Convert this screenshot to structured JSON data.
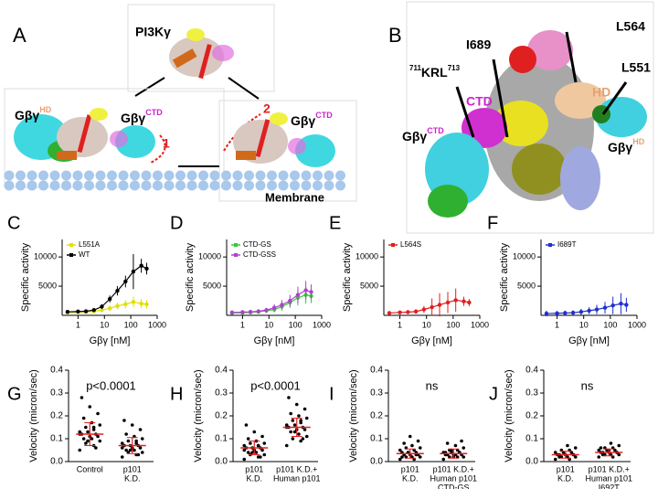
{
  "panel_a": {
    "label": "A",
    "enzyme": "PI3Kγ",
    "gbg_left": {
      "base": "Gβγ",
      "sup": "HD"
    },
    "gbg_middle": {
      "base": "Gβγ",
      "sup": "CTD"
    },
    "gbg_right": {
      "base": "Gβγ",
      "sup": "CTD"
    },
    "step1": "1",
    "step2": "2",
    "membrane": "Membrane"
  },
  "panel_b": {
    "label": "B",
    "residues": [
      "L564",
      "I689",
      "L551"
    ],
    "krl": {
      "pre": "711",
      "main": "KRL",
      "post": "713"
    },
    "ctd": "CTD",
    "hd": "HD",
    "gbg_left": {
      "base": "Gβγ",
      "sup": "CTD"
    },
    "gbg_right": {
      "base": "Gβγ",
      "sup": "HD"
    }
  },
  "chart_data": [
    {
      "type": "line",
      "label": "C",
      "ylabel": "Specific activity",
      "xlabel": "Gβγ [nM]",
      "log_x": true,
      "xlim": [
        0.25,
        1000
      ],
      "xticks": [
        1,
        10,
        100,
        1000
      ],
      "ylim": [
        0,
        13000
      ],
      "yticks": [
        5000,
        10000
      ],
      "x": [
        0.4,
        1,
        2,
        4,
        8,
        16,
        31,
        63,
        125,
        250,
        400
      ],
      "series": [
        {
          "name": "L551A",
          "color": "#e0e000",
          "values": [
            500,
            550,
            600,
            700,
            900,
            1200,
            1600,
            1900,
            2300,
            2000,
            1900
          ],
          "errors": [
            300,
            300,
            300,
            300,
            400,
            500,
            600,
            700,
            900,
            800,
            700
          ]
        },
        {
          "name": "WT",
          "color": "#000000",
          "values": [
            600,
            650,
            700,
            900,
            1500,
            2800,
            4200,
            5800,
            7500,
            8500,
            8000
          ],
          "errors": [
            200,
            200,
            200,
            300,
            400,
            600,
            800,
            1000,
            3000,
            1200,
            1000
          ]
        }
      ]
    },
    {
      "type": "line",
      "label": "D",
      "ylabel": "Specific activity",
      "xlabel": "Gβγ [nM]",
      "log_x": true,
      "xlim": [
        0.25,
        1000
      ],
      "xticks": [
        1,
        10,
        100,
        1000
      ],
      "ylim": [
        0,
        13000
      ],
      "yticks": [
        5000,
        10000
      ],
      "x": [
        0.4,
        1,
        2,
        4,
        8,
        16,
        31,
        63,
        125,
        250,
        400
      ],
      "series": [
        {
          "name": "CTD-GS",
          "color": "#33cc33",
          "values": [
            400,
            450,
            500,
            600,
            800,
            1000,
            1500,
            2200,
            3000,
            3500,
            3300
          ],
          "errors": [
            300,
            300,
            300,
            300,
            400,
            500,
            700,
            900,
            1300,
            1500,
            1200
          ]
        },
        {
          "name": "CTD-GSS",
          "color": "#b040d0",
          "values": [
            500,
            550,
            600,
            700,
            900,
            1300,
            1800,
            2500,
            3500,
            4300,
            4000
          ],
          "errors": [
            300,
            300,
            300,
            300,
            400,
            600,
            800,
            1000,
            1400,
            1600,
            1300
          ]
        }
      ]
    },
    {
      "type": "line",
      "label": "E",
      "ylabel": "Specific activity",
      "xlabel": "Gβγ [nM]",
      "log_x": true,
      "xlim": [
        0.25,
        1000
      ],
      "xticks": [
        1,
        10,
        100,
        1000
      ],
      "ylim": [
        0,
        13000
      ],
      "yticks": [
        5000,
        10000
      ],
      "x": [
        0.4,
        1,
        2,
        4,
        8,
        16,
        31,
        63,
        125,
        250,
        400
      ],
      "series": [
        {
          "name": "L564S",
          "color": "#e02020",
          "values": [
            400,
            500,
            550,
            650,
            1000,
            1400,
            1800,
            2200,
            2600,
            2400,
            2200
          ],
          "errors": [
            300,
            300,
            300,
            400,
            600,
            1500,
            2000,
            1800,
            2000,
            800,
            600
          ]
        }
      ]
    },
    {
      "type": "line",
      "label": "F",
      "ylabel": "Specific activity",
      "xlabel": "Gβγ [nM]",
      "log_x": true,
      "xlim": [
        0.25,
        1000
      ],
      "xticks": [
        1,
        10,
        100,
        1000
      ],
      "ylim": [
        0,
        13000
      ],
      "yticks": [
        5000,
        10000
      ],
      "x": [
        0.4,
        1,
        2,
        4,
        8,
        16,
        31,
        63,
        125,
        250,
        400
      ],
      "series": [
        {
          "name": "I689T",
          "color": "#2030d0",
          "values": [
            300,
            350,
            400,
            450,
            600,
            800,
            1000,
            1300,
            1700,
            2000,
            1800
          ],
          "errors": [
            500,
            400,
            400,
            400,
            500,
            600,
            800,
            1000,
            1500,
            1800,
            1200
          ]
        }
      ]
    },
    {
      "type": "dot",
      "label": "G",
      "ylabel": "Velocity (micron/sec)",
      "annotation": "p<0.0001",
      "ylim": [
        0,
        0.4
      ],
      "yticks": [
        {
          "value": 0,
          "label": "0.0"
        },
        0.1,
        0.2,
        0.3,
        0.4
      ],
      "categories": [
        [
          "Control"
        ],
        [
          "p101",
          "K.D."
        ]
      ],
      "groups": [
        {
          "values": [
            0.05,
            0.07,
            0.08,
            0.09,
            0.1,
            0.1,
            0.11,
            0.11,
            0.12,
            0.12,
            0.13,
            0.13,
            0.14,
            0.15,
            0.16,
            0.17,
            0.19,
            0.21,
            0.24,
            0.28,
            0.06,
            0.09,
            0.12,
            0.15
          ],
          "mean": 0.12,
          "sd": 0.05
        },
        {
          "values": [
            0.02,
            0.03,
            0.04,
            0.04,
            0.05,
            0.05,
            0.06,
            0.06,
            0.07,
            0.07,
            0.07,
            0.08,
            0.08,
            0.09,
            0.1,
            0.11,
            0.12,
            0.14,
            0.16,
            0.18,
            0.03,
            0.05,
            0.06,
            0.09
          ],
          "mean": 0.07,
          "sd": 0.035
        }
      ]
    },
    {
      "type": "dot",
      "label": "H",
      "ylabel": "Velocity (micron/sec)",
      "annotation": "p<0.0001",
      "ylim": [
        0,
        0.4
      ],
      "yticks": [
        {
          "value": 0,
          "label": "0.0"
        },
        0.1,
        0.2,
        0.3,
        0.4
      ],
      "categories": [
        [
          "p101",
          "K.D."
        ],
        [
          "p101 K.D.+",
          "Human p101"
        ]
      ],
      "groups": [
        {
          "values": [
            0.01,
            0.02,
            0.03,
            0.03,
            0.04,
            0.04,
            0.05,
            0.05,
            0.06,
            0.06,
            0.06,
            0.07,
            0.07,
            0.08,
            0.08,
            0.09,
            0.1,
            0.11,
            0.13,
            0.16,
            0.02,
            0.04,
            0.05,
            0.07
          ],
          "mean": 0.06,
          "sd": 0.03
        },
        {
          "values": [
            0.07,
            0.09,
            0.1,
            0.11,
            0.12,
            0.13,
            0.14,
            0.14,
            0.15,
            0.15,
            0.16,
            0.16,
            0.17,
            0.18,
            0.19,
            0.2,
            0.21,
            0.23,
            0.25,
            0.28,
            0.1,
            0.13,
            0.15,
            0.18
          ],
          "mean": 0.15,
          "sd": 0.04
        }
      ]
    },
    {
      "type": "dot",
      "label": "I",
      "ylabel": "Velocity (micron/sec)",
      "annotation": "ns",
      "ylim": [
        0,
        0.4
      ],
      "yticks": [
        {
          "value": 0,
          "label": "0.0"
        },
        0.1,
        0.2,
        0.3,
        0.4
      ],
      "categories": [
        [
          "p101",
          "K.D."
        ],
        [
          "p101 K.D.+",
          "Human p101",
          "CTD-GS"
        ]
      ],
      "groups": [
        {
          "values": [
            0.01,
            0.01,
            0.02,
            0.02,
            0.02,
            0.03,
            0.03,
            0.03,
            0.04,
            0.04,
            0.04,
            0.05,
            0.05,
            0.06,
            0.06,
            0.07,
            0.08,
            0.09,
            0.11,
            0.02,
            0.03,
            0.04
          ],
          "mean": 0.035,
          "sd": 0.02
        },
        {
          "values": [
            0.01,
            0.02,
            0.02,
            0.02,
            0.03,
            0.03,
            0.03,
            0.03,
            0.04,
            0.04,
            0.04,
            0.04,
            0.05,
            0.05,
            0.06,
            0.07,
            0.08,
            0.09,
            0.02,
            0.03,
            0.04,
            0.05
          ],
          "mean": 0.035,
          "sd": 0.02
        }
      ]
    },
    {
      "type": "dot",
      "label": "J",
      "ylabel": "Velocity (micron/sec)",
      "annotation": "ns",
      "ylim": [
        0,
        0.4
      ],
      "yticks": [
        {
          "value": 0,
          "label": "0.0"
        },
        0.1,
        0.2,
        0.3,
        0.4
      ],
      "categories": [
        [
          "p101",
          "K.D."
        ],
        [
          "p101 K.D.+",
          "Human p101",
          "I692T"
        ]
      ],
      "groups": [
        {
          "values": [
            0.01,
            0.01,
            0.02,
            0.02,
            0.02,
            0.03,
            0.03,
            0.03,
            0.03,
            0.04,
            0.04,
            0.04,
            0.05,
            0.05,
            0.06,
            0.07,
            0.02,
            0.03
          ],
          "mean": 0.03,
          "sd": 0.015
        },
        {
          "values": [
            0.02,
            0.02,
            0.03,
            0.03,
            0.03,
            0.04,
            0.04,
            0.04,
            0.04,
            0.05,
            0.05,
            0.05,
            0.06,
            0.06,
            0.07,
            0.08,
            0.03,
            0.04,
            0.05,
            0.06
          ],
          "mean": 0.04,
          "sd": 0.015
        }
      ]
    }
  ]
}
